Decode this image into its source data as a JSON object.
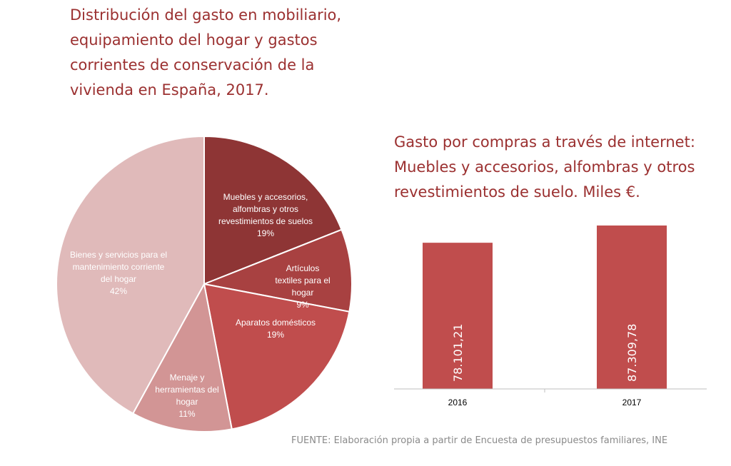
{
  "chart_data": [
    {
      "type": "pie",
      "title": [
        "Distribución del gasto en mobiliario,",
        "equipamiento del hogar y gastos",
        "corrientes de conservación de la",
        "vivienda en España, 2017."
      ],
      "slices": [
        {
          "label": [
            "Muebles y accesorios,",
            "alfombras y otros",
            "revestimientos de suelos"
          ],
          "value": 19,
          "pct": "19%",
          "color": "#8e3535"
        },
        {
          "label": [
            "Artículos",
            "textiles para el",
            "hogar"
          ],
          "value": 9,
          "pct": "9%",
          "color": "#a84141"
        },
        {
          "label": [
            "Aparatos domésticos"
          ],
          "value": 19,
          "pct": "19%",
          "color": "#c04d4d"
        },
        {
          "label": [
            "Menaje y",
            "herramientas del",
            "hogar"
          ],
          "value": 11,
          "pct": "11%",
          "color": "#d29595"
        },
        {
          "label": [
            "Bienes y servicios para el",
            "mantenimiento corriente",
            "del hogar"
          ],
          "value": 42,
          "pct": "42%",
          "color": "#e0baba"
        }
      ]
    },
    {
      "type": "bar",
      "title": [
        "Gasto por compras a través de internet:",
        "Muebles y accesorios, alfombras y otros",
        "revestimientos de suelo. Miles €."
      ],
      "categories": [
        "2016",
        "2017"
      ],
      "values": [
        78101.21,
        87309.78
      ],
      "value_labels": [
        "78.101,21",
        "87.309,78"
      ],
      "color": "#c04d4d",
      "ylim": [
        0,
        100000
      ]
    }
  ],
  "source": "FUENTE: Elaboración propia a partir de Encuesta de presupuestos familiares, INE"
}
